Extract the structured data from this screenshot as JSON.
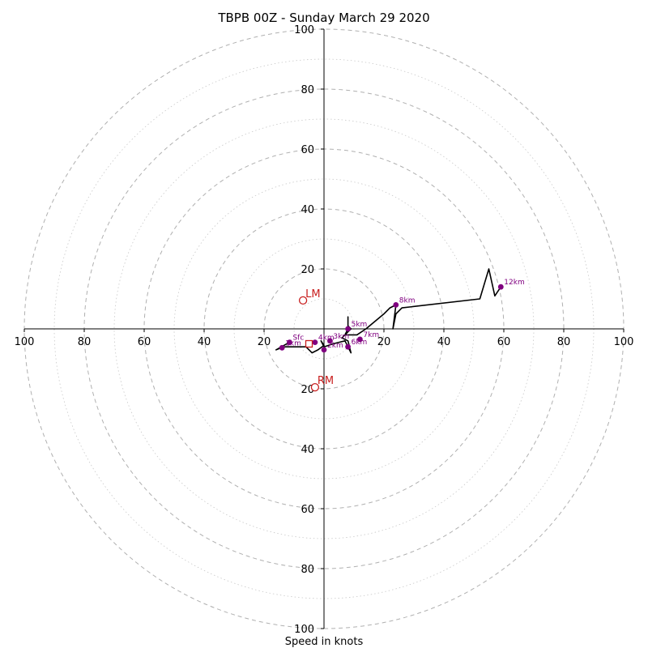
{
  "chart_data": {
    "type": "hodograph",
    "title": "TBPB 00Z - Sunday March 29 2020",
    "xlabel": "Speed in knots",
    "max_speed": 100,
    "ring_major_step": 20,
    "ring_minor_step": 10,
    "x_tick_labels": [
      "100",
      "80",
      "60",
      "40",
      "20",
      "20",
      "40",
      "60",
      "80",
      "100"
    ],
    "y_tick_labels_top": [
      "100",
      "80",
      "60",
      "40",
      "20"
    ],
    "y_tick_labels_bottom": [
      "20",
      "40",
      "60",
      "80",
      "100"
    ],
    "colors": {
      "trace": "#000000",
      "points": "#800080",
      "storm_motion": "#c81e1e",
      "rings": "#b0b0b0",
      "axes": "#000000"
    },
    "trace": [
      [
        -11.5,
        -4.5
      ],
      [
        -16,
        -7
      ],
      [
        -13.5,
        -6
      ],
      [
        -6,
        -6
      ],
      [
        -4,
        -8
      ],
      [
        -2,
        -7
      ],
      [
        0,
        -5.5
      ],
      [
        -1,
        -4
      ],
      [
        0,
        -6
      ],
      [
        3,
        -5
      ],
      [
        5,
        -4.5
      ],
      [
        7,
        -4
      ],
      [
        9,
        -8
      ],
      [
        8,
        -4
      ],
      [
        6,
        -3
      ],
      [
        8,
        -1
      ],
      [
        9,
        0
      ],
      [
        8,
        1
      ],
      [
        8,
        3
      ],
      [
        8,
        4
      ],
      [
        8,
        0
      ],
      [
        7,
        -2
      ],
      [
        11,
        -2
      ],
      [
        14,
        0
      ],
      [
        20,
        5
      ],
      [
        22,
        7
      ],
      [
        24,
        8
      ],
      [
        23,
        0
      ],
      [
        24,
        5
      ],
      [
        26,
        7
      ],
      [
        52,
        10
      ],
      [
        55,
        20
      ],
      [
        57,
        11
      ],
      [
        59,
        14
      ]
    ],
    "height_points": [
      {
        "label": "Sfc",
        "u": -11.5,
        "v": -4.5
      },
      {
        "label": "1km",
        "u": -14,
        "v": -6.3
      },
      {
        "label": "2km",
        "u": 0,
        "v": -7
      },
      {
        "label": "3km",
        "u": 2,
        "v": -4
      },
      {
        "label": "4km",
        "u": -3,
        "v": -4.5
      },
      {
        "label": "5km",
        "u": 8,
        "v": 0
      },
      {
        "label": "6km",
        "u": 8,
        "v": -6
      },
      {
        "label": "7km",
        "u": 12,
        "v": -3.5
      },
      {
        "label": "8km",
        "u": 24,
        "v": 8
      },
      {
        "label": "12km",
        "u": 59,
        "v": 14
      }
    ],
    "storm_motion": [
      {
        "label": "LM",
        "u": -7,
        "v": 9.5
      },
      {
        "label": "RM",
        "u": -3,
        "v": -19.5
      }
    ],
    "mean_wind": {
      "u": -5,
      "v": -5
    }
  }
}
